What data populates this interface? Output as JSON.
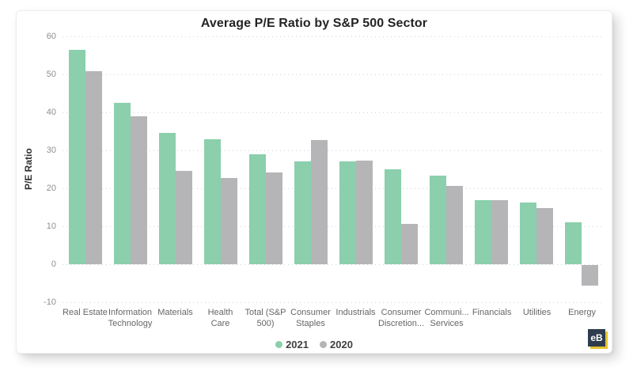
{
  "page": {
    "background": "#ffffff"
  },
  "chart_data": {
    "type": "bar",
    "title": "Average P/E Ratio by S&P 500 Sector",
    "xlabel": "",
    "ylabel": "P/E Ratio",
    "ylim": [
      -10,
      60
    ],
    "ytick_step": 10,
    "grid": "dotted-horizontal",
    "legend_position": "bottom-center",
    "categories": [
      "Real Estate",
      "Information Technology",
      "Materials",
      "Health Care",
      "Total (S&P 500)",
      "Consumer Staples",
      "Industrials",
      "Consumer Discretion...",
      "Communi... Services",
      "Financials",
      "Utilities",
      "Energy"
    ],
    "category_labels": [
      [
        "Real Estate"
      ],
      [
        "Information",
        "Technology"
      ],
      [
        "Materials"
      ],
      [
        "Health Care"
      ],
      [
        "Total (S&P",
        "500)"
      ],
      [
        "Consumer",
        "Staples"
      ],
      [
        "Industrials"
      ],
      [
        "Consumer",
        "Discretion..."
      ],
      [
        "Communi...",
        "Services"
      ],
      [
        "Financials"
      ],
      [
        "Utilities"
      ],
      [
        "Energy"
      ]
    ],
    "series": [
      {
        "name": "2021",
        "color": "#8BCFAC",
        "values": [
          56.4,
          42.4,
          34.6,
          33.0,
          29.0,
          27.1,
          27.1,
          25.1,
          23.3,
          16.9,
          16.2,
          11.1
        ]
      },
      {
        "name": "2020",
        "color": "#B5B5B8",
        "values": [
          50.8,
          38.9,
          24.6,
          22.7,
          24.2,
          32.7,
          27.3,
          10.6,
          20.6,
          16.9,
          14.7,
          -5.4
        ]
      }
    ]
  },
  "logo": {
    "text": "eB",
    "bg": "#2E3C4E",
    "accent": "#E5C32E"
  }
}
